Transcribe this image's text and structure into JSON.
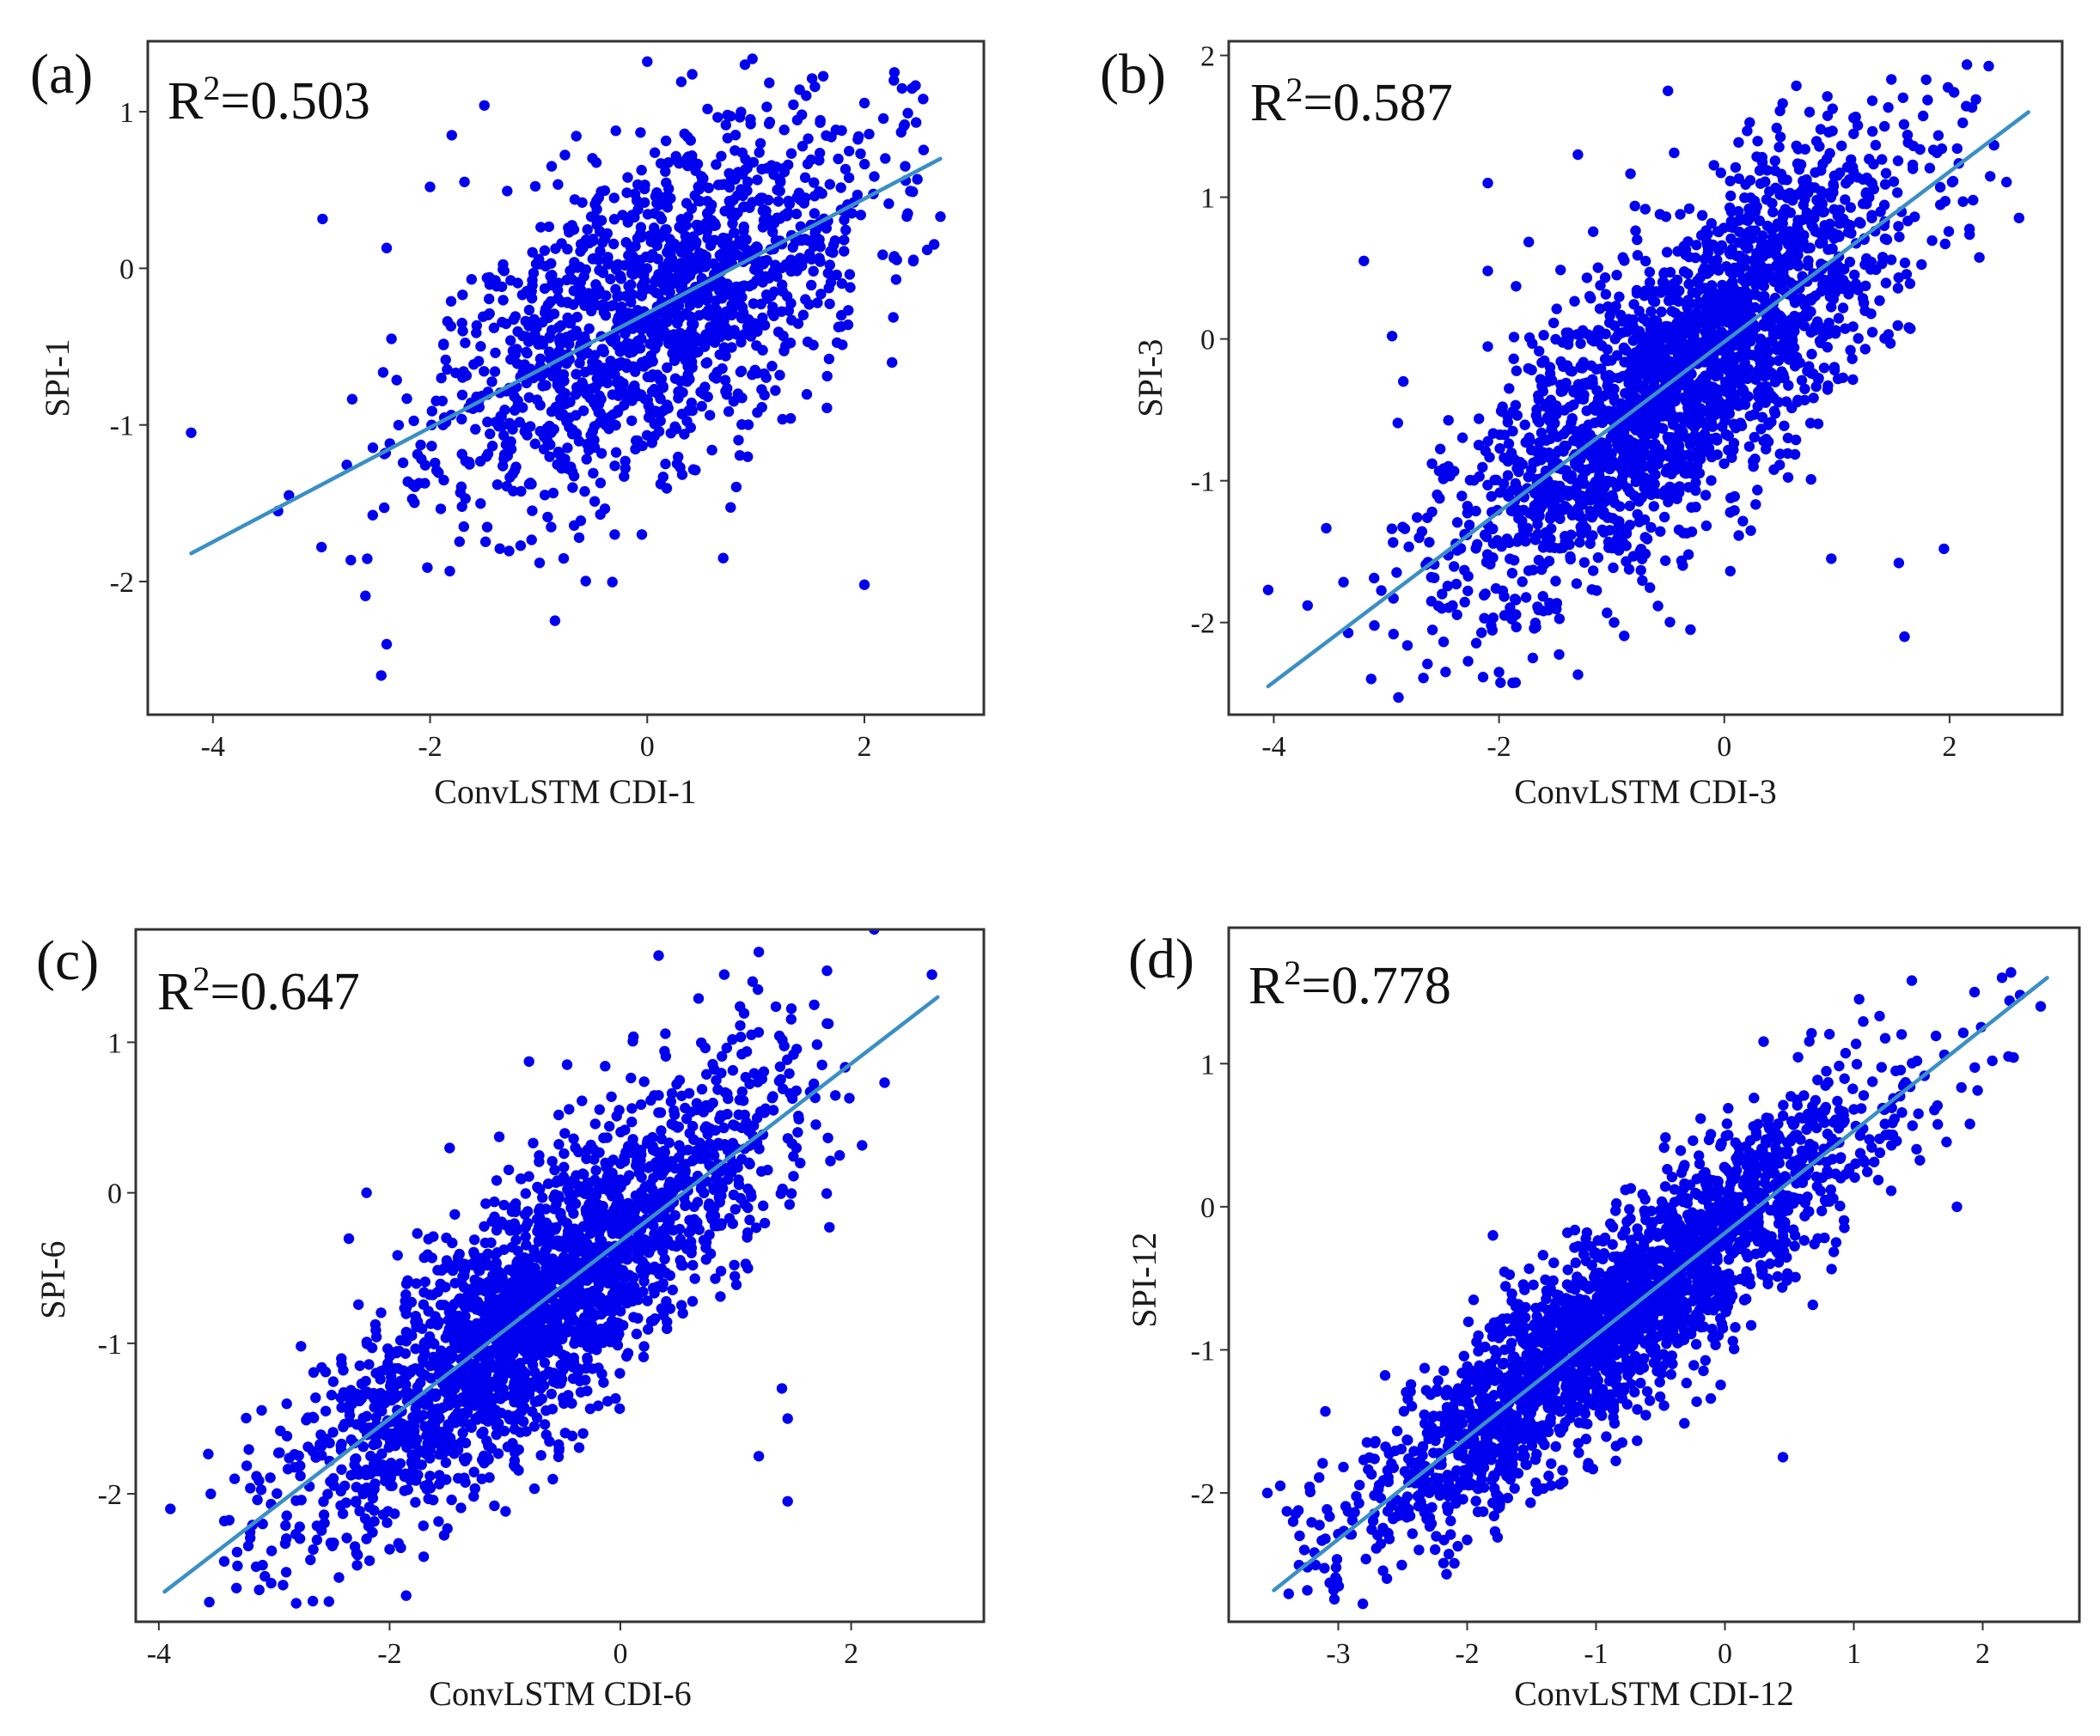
{
  "figure": {
    "description_note": "2x2 grid of scatter plots comparing ConvLSTM CDI predictions with SPI at four time scales",
    "point_color": "#0000ee",
    "line_color": "#3a8fc4",
    "frame_color": "#333333"
  },
  "chart_data": [
    {
      "panel": "(a)",
      "type": "scatter",
      "xlabel": "ConvLSTM CDI-1",
      "ylabel": "SPI-1",
      "r2_prefix": "R",
      "r2_sup": "2",
      "r2_value": "=0.503",
      "r2": 0.503,
      "xlim": [
        -4.6,
        3.1
      ],
      "ylim": [
        -2.85,
        1.45
      ],
      "xticks": [
        -4,
        -2,
        0,
        2
      ],
      "xtick_labels": [
        "-4",
        "-2",
        "0",
        "2"
      ],
      "yticks": [
        -2,
        -1,
        0,
        1
      ],
      "ytick_labels": [
        "-2",
        "-1",
        "0",
        "1"
      ],
      "fit_line": {
        "x0": -4.2,
        "y0": -1.82,
        "x1": 2.7,
        "y1": 0.7
      },
      "cloud": {
        "n": 1500,
        "x_center": 0.1,
        "x_sd": 1.0,
        "resid_sd": 0.5,
        "seed": 11
      },
      "outliers": [
        [
          -4.2,
          -1.05
        ],
        [
          -3.4,
          -1.55
        ],
        [
          -3.3,
          -1.45
        ],
        [
          -3.0,
          -1.78
        ],
        [
          -2.45,
          -2.6
        ],
        [
          -2.4,
          -2.4
        ],
        [
          -2.0,
          0.52
        ],
        [
          -1.8,
          0.85
        ],
        [
          -0.85,
          -2.25
        ],
        [
          -0.3,
          -1.7
        ],
        [
          -0.05,
          -1.7
        ],
        [
          0.7,
          -1.85
        ],
        [
          2.0,
          -2.02
        ],
        [
          0.0,
          1.32
        ],
        [
          2.4,
          0.35
        ],
        [
          -2.4,
          0.13
        ],
        [
          0.9,
          1.3
        ],
        [
          2.7,
          0.33
        ]
      ]
    },
    {
      "panel": "(b)",
      "type": "scatter",
      "xlabel": "ConvLSTM CDI-3",
      "ylabel": "SPI-3",
      "r2_prefix": "R",
      "r2_sup": "2",
      "r2_value": "=0.587",
      "r2": 0.587,
      "xlim": [
        -4.4,
        3.0
      ],
      "ylim": [
        -2.65,
        2.1
      ],
      "xticks": [
        -4,
        -2,
        0,
        2
      ],
      "xtick_labels": [
        "-4",
        "-2",
        "0",
        "2"
      ],
      "yticks": [
        -2,
        -1,
        0,
        1,
        2
      ],
      "ytick_labels": [
        "-2",
        "-1",
        "0",
        "1",
        "2"
      ],
      "fit_line": {
        "x0": -4.05,
        "y0": -2.45,
        "x1": 2.7,
        "y1": 1.6
      },
      "cloud": {
        "n": 2200,
        "x_center": -0.4,
        "x_sd": 1.0,
        "resid_sd": 0.52,
        "seed": 23
      },
      "outliers": [
        [
          -4.05,
          -1.77
        ],
        [
          -3.7,
          -1.88
        ],
        [
          -3.2,
          0.55
        ],
        [
          -2.95,
          0.02
        ],
        [
          -2.85,
          -0.3
        ],
        [
          -2.1,
          1.1
        ],
        [
          -2.1,
          0.48
        ],
        [
          -1.3,
          1.3
        ],
        [
          -0.5,
          1.75
        ],
        [
          -1.7,
          -2.25
        ],
        [
          -2.0,
          -2.35
        ],
        [
          1.6,
          -2.1
        ],
        [
          1.55,
          -1.58
        ],
        [
          1.95,
          -1.48
        ],
        [
          0.95,
          -1.55
        ],
        [
          -0.3,
          -2.05
        ],
        [
          -2.6,
          -1.85
        ]
      ]
    },
    {
      "panel": "(c)",
      "type": "scatter",
      "xlabel": "ConvLSTM CDI-6",
      "ylabel": "SPI-6",
      "r2_prefix": "R",
      "r2_sup": "2",
      "r2_value": "=0.647",
      "r2": 0.647,
      "xlim": [
        -4.2,
        3.15
      ],
      "ylim": [
        -2.85,
        1.75
      ],
      "xticks": [
        -4,
        -2,
        0,
        2
      ],
      "xtick_labels": [
        "-4",
        "-2",
        "0",
        "2"
      ],
      "yticks": [
        -2,
        -1,
        0,
        1
      ],
      "ytick_labels": [
        "-2",
        "-1",
        "0",
        "1"
      ],
      "fit_line": {
        "x0": -3.95,
        "y0": -2.65,
        "x1": 2.75,
        "y1": 1.3
      },
      "cloud": {
        "n": 2300,
        "x_center": -0.75,
        "x_sd": 1.0,
        "resid_sd": 0.43,
        "seed": 37
      },
      "outliers": [
        [
          -3.9,
          -2.1
        ],
        [
          -3.55,
          -2.0
        ],
        [
          -3.1,
          -2.2
        ],
        [
          -2.3,
          -2.35
        ],
        [
          1.45,
          -2.05
        ],
        [
          1.45,
          -1.5
        ],
        [
          1.2,
          -1.75
        ],
        [
          2.2,
          1.75
        ],
        [
          2.7,
          1.45
        ],
        [
          1.4,
          -1.3
        ],
        [
          0.9,
          1.45
        ],
        [
          1.2,
          1.6
        ],
        [
          -2.2,
          0.0
        ]
      ]
    },
    {
      "panel": "(d)",
      "type": "scatter",
      "xlabel": "ConvLSTM CDI-12",
      "ylabel": "SPI-12",
      "r2_prefix": "R",
      "r2_sup": "2",
      "r2_value": "=0.778",
      "r2": 0.778,
      "xlim": [
        -3.85,
        2.75
      ],
      "ylim": [
        -2.9,
        1.95
      ],
      "xticks": [
        -3,
        -2,
        -1,
        0,
        1,
        2
      ],
      "xtick_labels": [
        "-3",
        "-2",
        "-1",
        "0",
        "1",
        "2"
      ],
      "yticks": [
        -2,
        -1,
        0,
        1
      ],
      "ytick_labels": [
        "-2",
        "-1",
        "0",
        "1"
      ],
      "fit_line": {
        "x0": -3.5,
        "y0": -2.68,
        "x1": 2.5,
        "y1": 1.6
      },
      "cloud": {
        "n": 2400,
        "x_center": -0.8,
        "x_sd": 1.0,
        "resid_sd": 0.34,
        "seed": 53
      },
      "outliers": [
        [
          -3.55,
          -2.0
        ],
        [
          -3.45,
          -1.95
        ],
        [
          -3.35,
          -2.2
        ],
        [
          -3.1,
          -2.32
        ],
        [
          -3.1,
          -1.43
        ],
        [
          -3.3,
          -2.3
        ],
        [
          0.45,
          -1.75
        ],
        [
          1.8,
          0.0
        ],
        [
          -1.95,
          -0.65
        ],
        [
          -1.8,
          -0.2
        ],
        [
          2.2,
          1.05
        ],
        [
          2.45,
          1.4
        ],
        [
          2.15,
          1.6
        ],
        [
          1.45,
          1.58
        ]
      ]
    }
  ]
}
